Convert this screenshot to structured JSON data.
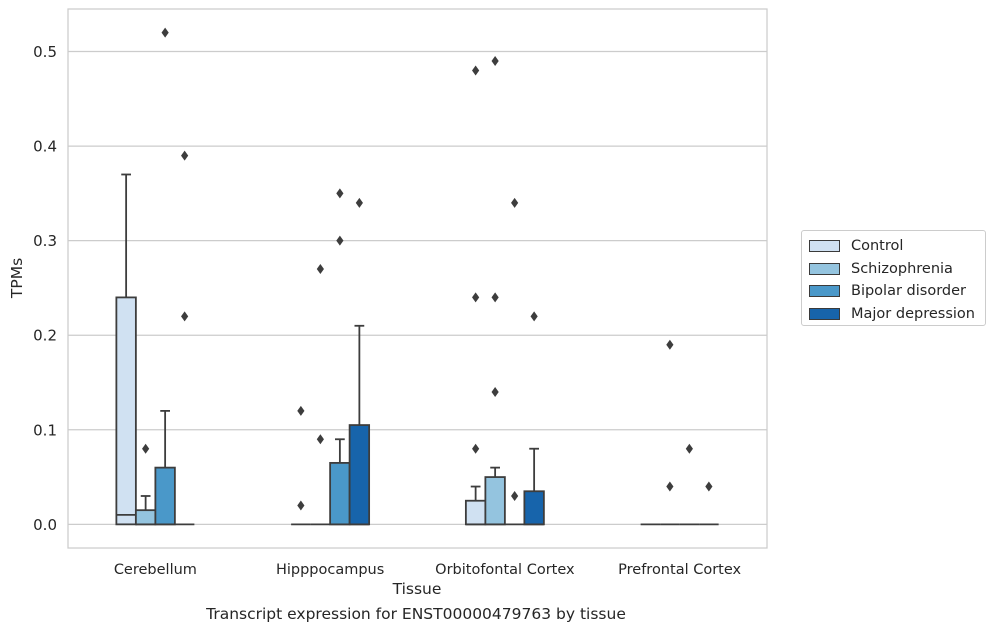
{
  "chart_data": {
    "type": "box",
    "caption": "Transcript expression for ENST00000479763 by tissue",
    "xlabel": "Tissue",
    "ylabel": "TPMs",
    "ylim": [
      -0.025,
      0.545
    ],
    "yticks": [
      0.0,
      0.1,
      0.2,
      0.3,
      0.4,
      0.5
    ],
    "ytick_labels": [
      "0.0",
      "0.1",
      "0.2",
      "0.3",
      "0.4",
      "0.5"
    ],
    "grid": "horizontal",
    "legend_position": "right",
    "categories": [
      "Cerebellum",
      "Hipppocampus",
      "Orbitofontal Cortex",
      "Prefrontal Cortex"
    ],
    "series": [
      {
        "name": "Control",
        "color": "#d0e1f2",
        "boxes": [
          {
            "q1": 0.0,
            "median": 0.01,
            "q3": 0.24,
            "whisker_low": 0.0,
            "whisker_high": 0.37,
            "outliers": []
          },
          {
            "q1": 0.0,
            "median": 0.0,
            "q3": 0.0,
            "whisker_low": 0.0,
            "whisker_high": 0.0,
            "outliers": [
              0.12,
              0.02
            ]
          },
          {
            "q1": 0.0,
            "median": 0.0,
            "q3": 0.025,
            "whisker_low": 0.0,
            "whisker_high": 0.04,
            "outliers": [
              0.48,
              0.24,
              0.08
            ]
          },
          {
            "q1": 0.0,
            "median": 0.0,
            "q3": 0.0,
            "whisker_low": 0.0,
            "whisker_high": 0.0,
            "outliers": []
          }
        ]
      },
      {
        "name": "Schizophrenia",
        "color": "#94c4df",
        "boxes": [
          {
            "q1": 0.0,
            "median": 0.0,
            "q3": 0.015,
            "whisker_low": 0.0,
            "whisker_high": 0.03,
            "outliers": [
              0.08
            ]
          },
          {
            "q1": 0.0,
            "median": 0.0,
            "q3": 0.0,
            "whisker_low": 0.0,
            "whisker_high": 0.0,
            "outliers": [
              0.27,
              0.09
            ]
          },
          {
            "q1": 0.0,
            "median": 0.0,
            "q3": 0.05,
            "whisker_low": 0.0,
            "whisker_high": 0.06,
            "outliers": [
              0.49,
              0.24,
              0.14
            ]
          },
          {
            "q1": 0.0,
            "median": 0.0,
            "q3": 0.0,
            "whisker_low": 0.0,
            "whisker_high": 0.0,
            "outliers": [
              0.19,
              0.04
            ]
          }
        ]
      },
      {
        "name": "Bipolar disorder",
        "color": "#4a98c9",
        "boxes": [
          {
            "q1": 0.0,
            "median": 0.0,
            "q3": 0.06,
            "whisker_low": 0.0,
            "whisker_high": 0.12,
            "outliers": [
              0.52
            ]
          },
          {
            "q1": 0.0,
            "median": 0.0,
            "q3": 0.065,
            "whisker_low": 0.0,
            "whisker_high": 0.09,
            "outliers": [
              0.35,
              0.3
            ]
          },
          {
            "q1": 0.0,
            "median": 0.0,
            "q3": 0.0,
            "whisker_low": 0.0,
            "whisker_high": 0.0,
            "outliers": [
              0.34,
              0.03
            ]
          },
          {
            "q1": 0.0,
            "median": 0.0,
            "q3": 0.0,
            "whisker_low": 0.0,
            "whisker_high": 0.0,
            "outliers": [
              0.08
            ]
          }
        ]
      },
      {
        "name": "Major depression",
        "color": "#1764ab",
        "boxes": [
          {
            "q1": 0.0,
            "median": 0.0,
            "q3": 0.0,
            "whisker_low": 0.0,
            "whisker_high": 0.0,
            "outliers": [
              0.39,
              0.22
            ]
          },
          {
            "q1": 0.0,
            "median": 0.0,
            "q3": 0.105,
            "whisker_low": 0.0,
            "whisker_high": 0.21,
            "outliers": [
              0.34
            ]
          },
          {
            "q1": 0.0,
            "median": 0.0,
            "q3": 0.035,
            "whisker_low": 0.0,
            "whisker_high": 0.08,
            "outliers": [
              0.22
            ]
          },
          {
            "q1": 0.0,
            "median": 0.0,
            "q3": 0.0,
            "whisker_low": 0.0,
            "whisker_high": 0.0,
            "outliers": [
              0.04
            ]
          }
        ]
      }
    ]
  }
}
